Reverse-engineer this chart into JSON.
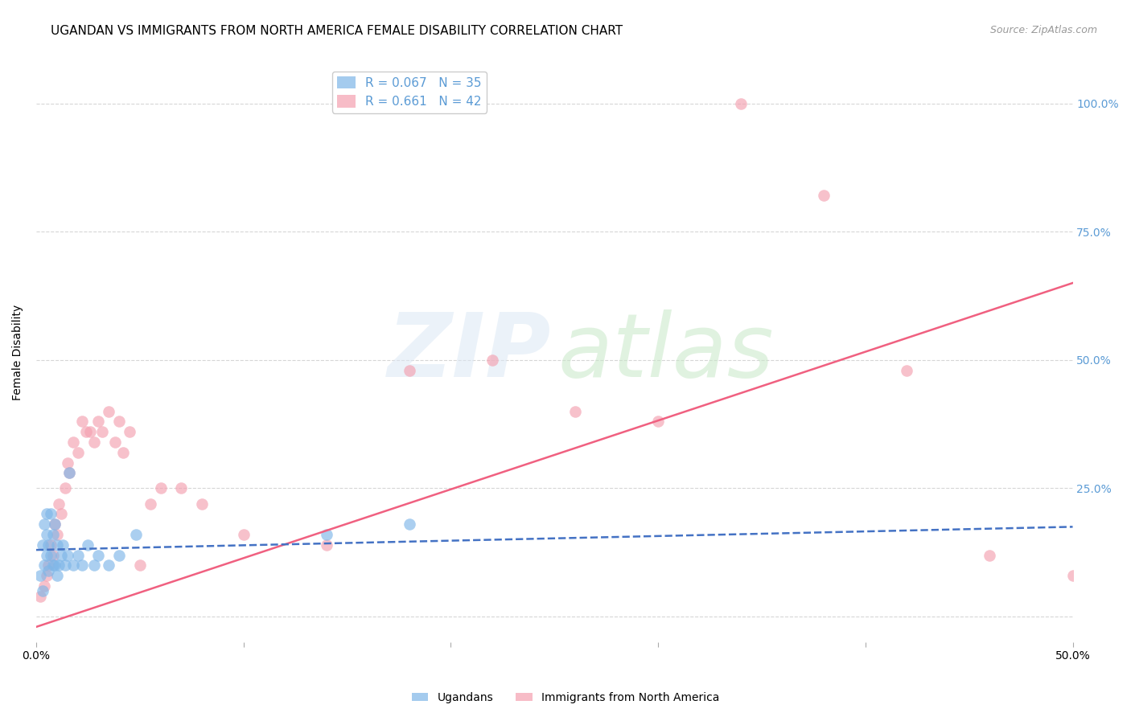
{
  "title": "UGANDAN VS IMMIGRANTS FROM NORTH AMERICA FEMALE DISABILITY CORRELATION CHART",
  "source": "Source: ZipAtlas.com",
  "ylabel": "Female Disability",
  "xlim": [
    0.0,
    0.5
  ],
  "ylim": [
    -0.05,
    1.08
  ],
  "xticks": [
    0.0,
    0.1,
    0.2,
    0.3,
    0.4,
    0.5
  ],
  "xtick_labels": [
    "0.0%",
    "",
    "",
    "",
    "",
    "50.0%"
  ],
  "ytick_positions": [
    0.0,
    0.25,
    0.5,
    0.75,
    1.0
  ],
  "ytick_labels": [
    "",
    "25.0%",
    "50.0%",
    "75.0%",
    "100.0%"
  ],
  "legend_entries": [
    {
      "label": "R = 0.067   N = 35",
      "color": "#a8c4e0"
    },
    {
      "label": "R = 0.661   N = 42",
      "color": "#f4a0b0"
    }
  ],
  "legend_labels": [
    "Ugandans",
    "Immigrants from North America"
  ],
  "ugandan_x": [
    0.002,
    0.003,
    0.003,
    0.004,
    0.004,
    0.005,
    0.005,
    0.005,
    0.006,
    0.006,
    0.007,
    0.007,
    0.008,
    0.008,
    0.009,
    0.009,
    0.01,
    0.01,
    0.011,
    0.012,
    0.013,
    0.014,
    0.015,
    0.016,
    0.018,
    0.02,
    0.022,
    0.025,
    0.028,
    0.03,
    0.035,
    0.04,
    0.048,
    0.14,
    0.18
  ],
  "ugandan_y": [
    0.08,
    0.05,
    0.14,
    0.1,
    0.18,
    0.12,
    0.16,
    0.2,
    0.09,
    0.14,
    0.12,
    0.2,
    0.1,
    0.16,
    0.1,
    0.18,
    0.14,
    0.08,
    0.1,
    0.12,
    0.14,
    0.1,
    0.12,
    0.28,
    0.1,
    0.12,
    0.1,
    0.14,
    0.1,
    0.12,
    0.1,
    0.12,
    0.16,
    0.16,
    0.18
  ],
  "immigrant_x": [
    0.002,
    0.004,
    0.005,
    0.006,
    0.007,
    0.008,
    0.009,
    0.01,
    0.011,
    0.012,
    0.014,
    0.015,
    0.016,
    0.018,
    0.02,
    0.022,
    0.024,
    0.026,
    0.028,
    0.03,
    0.032,
    0.035,
    0.038,
    0.04,
    0.042,
    0.045,
    0.05,
    0.055,
    0.06,
    0.07,
    0.08,
    0.1,
    0.14,
    0.18,
    0.22,
    0.26,
    0.3,
    0.34,
    0.38,
    0.42,
    0.46,
    0.5
  ],
  "immigrant_y": [
    0.04,
    0.06,
    0.08,
    0.1,
    0.14,
    0.12,
    0.18,
    0.16,
    0.22,
    0.2,
    0.25,
    0.3,
    0.28,
    0.34,
    0.32,
    0.38,
    0.36,
    0.36,
    0.34,
    0.38,
    0.36,
    0.4,
    0.34,
    0.38,
    0.32,
    0.36,
    0.1,
    0.22,
    0.25,
    0.25,
    0.22,
    0.16,
    0.14,
    0.48,
    0.5,
    0.4,
    0.38,
    1.0,
    0.82,
    0.48,
    0.12,
    0.08
  ],
  "ugandan_color": "#7eb6e8",
  "immigrant_color": "#f4a0b0",
  "trend_ugandan_color": "#4472c4",
  "trend_immigrant_color": "#f06080",
  "background_color": "#ffffff",
  "title_fontsize": 11,
  "axis_label_fontsize": 10,
  "tick_fontsize": 10,
  "legend_fontsize": 11,
  "right_ytick_color": "#5b9bd5",
  "pink_trend_x0": 0.0,
  "pink_trend_y0": -0.02,
  "pink_trend_x1": 0.5,
  "pink_trend_y1": 0.65,
  "blue_trend_x0": 0.0,
  "blue_trend_y0": 0.13,
  "blue_trend_x1": 0.5,
  "blue_trend_y1": 0.175
}
